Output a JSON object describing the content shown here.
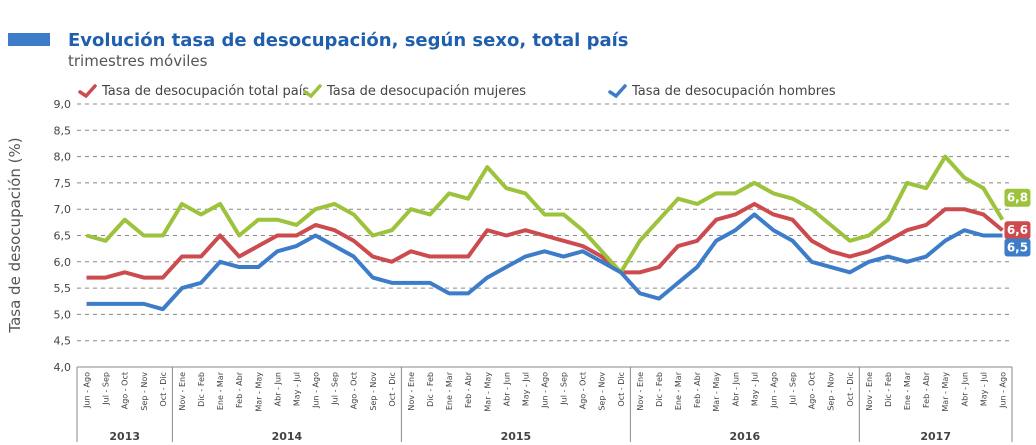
{
  "chart_data": {
    "type": "line",
    "title": "Evolución tasa de desocupación, según sexo, total país",
    "subtitle": "trimestres móviles",
    "y_label": "Tasa de desocupación (%)",
    "categories": [
      "Jun - Ago",
      "Jul - Sep",
      "Ago - Oct",
      "Sep - Nov",
      "Oct - Dic",
      "Nov - Ene",
      "Dic - Feb",
      "Ene - Mar",
      "Feb - Abr",
      "Mar - May",
      "Abr - Jun",
      "May - Jul",
      "Jun - Ago",
      "Jul - Sep",
      "Ago - Oct",
      "Sep - Nov",
      "Oct - Dic",
      "Nov - Ene",
      "Dic - Feb",
      "Ene - Mar",
      "Feb - Abr",
      "Mar - May",
      "Abr - Jun",
      "May - Jul",
      "Jun - Ago",
      "Jul - Sep",
      "Ago - Oct",
      "Sep - Nov",
      "Oct - Dic",
      "Nov - Ene",
      "Dic - Feb",
      "Ene - Mar",
      "Feb - Abr",
      "Mar - May",
      "Abr - Jun",
      "May - Jul",
      "Jun - Ago",
      "Jul - Sep",
      "Ago - Oct",
      "Sep - Nov",
      "Oct - Dic",
      "Nov - Ene",
      "Dic - Feb",
      "Ene - Mar",
      "Feb - Abr",
      "Mar - May",
      "Abr - Jun",
      "May - Jul",
      "Jun - Ago"
    ],
    "years": [
      "2013",
      "2014",
      "2015",
      "2016",
      "2017"
    ],
    "ylim": [
      4,
      9
    ],
    "yticks": [
      {
        "value": 4,
        "label": "4,0"
      },
      {
        "value": 4.5,
        "label": "4,5"
      },
      {
        "value": 5,
        "label": "5,0"
      },
      {
        "value": 5.5,
        "label": "5,5"
      },
      {
        "value": 6,
        "label": "6,0"
      },
      {
        "value": 6.5,
        "label": "6,5"
      },
      {
        "value": 7,
        "label": "7,0"
      },
      {
        "value": 7.5,
        "label": "7,5"
      },
      {
        "value": 8,
        "label": "8,0"
      },
      {
        "value": 8.5,
        "label": "8,5"
      },
      {
        "value": 9,
        "label": "9,0"
      }
    ],
    "grid": true,
    "series": [
      {
        "name": "Tasa de desocupación total país",
        "color": "#cc4b4e",
        "end_label": "6,6",
        "values": [
          5.7,
          5.7,
          5.8,
          5.7,
          5.7,
          6.1,
          6.1,
          6.5,
          6.1,
          6.3,
          6.5,
          6.5,
          6.7,
          6.6,
          6.4,
          6.1,
          6.0,
          6.2,
          6.1,
          6.1,
          6.1,
          6.6,
          6.5,
          6.6,
          6.5,
          6.4,
          6.3,
          6.1,
          5.8,
          5.8,
          5.9,
          6.3,
          6.4,
          6.8,
          6.9,
          7.1,
          6.9,
          6.8,
          6.4,
          6.2,
          6.1,
          6.2,
          6.4,
          6.6,
          6.7,
          7.0,
          7.0,
          6.9,
          6.6
        ]
      },
      {
        "name": "Tasa de desocupación mujeres",
        "color": "#9dc23b",
        "end_label": "6,8",
        "values": [
          6.5,
          6.4,
          6.8,
          6.5,
          6.5,
          7.1,
          6.9,
          7.1,
          6.5,
          6.8,
          6.8,
          6.7,
          7.0,
          7.1,
          6.9,
          6.5,
          6.6,
          7.0,
          6.9,
          7.3,
          7.2,
          7.8,
          7.4,
          7.3,
          6.9,
          6.9,
          6.6,
          6.2,
          5.8,
          6.4,
          6.8,
          7.2,
          7.1,
          7.3,
          7.3,
          7.5,
          7.3,
          7.2,
          7.0,
          6.7,
          6.4,
          6.5,
          6.8,
          7.5,
          7.4,
          8.0,
          7.6,
          7.4,
          6.8
        ]
      },
      {
        "name": "Tasa de desocupación hombres",
        "color": "#3d7cc9",
        "end_label": "6,5",
        "values": [
          5.2,
          5.2,
          5.2,
          5.2,
          5.1,
          5.5,
          5.6,
          6.0,
          5.9,
          5.9,
          6.2,
          6.3,
          6.5,
          6.3,
          6.1,
          5.7,
          5.6,
          5.6,
          5.6,
          5.4,
          5.4,
          5.7,
          5.9,
          6.1,
          6.2,
          6.1,
          6.2,
          6.0,
          5.8,
          5.4,
          5.3,
          5.6,
          5.9,
          6.4,
          6.6,
          6.9,
          6.6,
          6.4,
          6.0,
          5.9,
          5.8,
          6.0,
          6.1,
          6.0,
          6.1,
          6.4,
          6.6,
          6.5,
          6.5
        ]
      }
    ]
  }
}
